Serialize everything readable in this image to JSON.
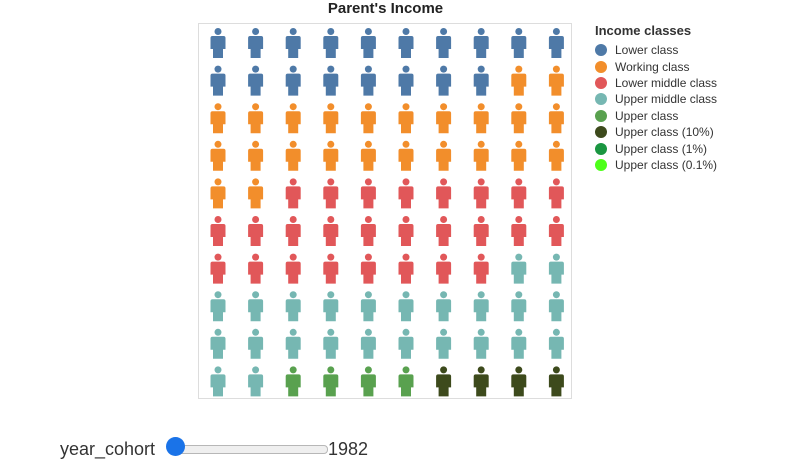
{
  "chart_data": {
    "type": "pictogram",
    "title": "Parent's Income",
    "grid": {
      "rows": 10,
      "cols": 10
    },
    "fill_order": "row-major, top-left to bottom-right",
    "categories": [
      "Lower class",
      "Working class",
      "Lower middle class",
      "Upper middle class",
      "Upper class",
      "Upper class (10%)",
      "Upper class (1%)",
      "Upper class (0.1%)"
    ],
    "values": [
      18,
      24,
      26,
      24,
      4,
      4,
      0,
      0
    ],
    "colors": [
      "#4e79a7",
      "#f28e2b",
      "#e15759",
      "#76b7b2",
      "#59a14f",
      "#3d4a1c",
      "#1a9641",
      "#4dff1a"
    ],
    "legend": {
      "title": "Income classes",
      "placement": "right"
    }
  },
  "slider": {
    "label": "year_cohort",
    "value": "1982",
    "fraction": 0.0
  }
}
